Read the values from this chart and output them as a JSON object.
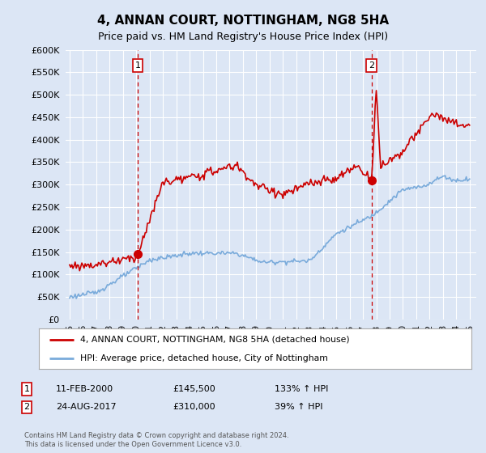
{
  "title": "4, ANNAN COURT, NOTTINGHAM, NG8 5HA",
  "subtitle": "Price paid vs. HM Land Registry's House Price Index (HPI)",
  "title_fontsize": 11,
  "subtitle_fontsize": 9,
  "bg_color": "#dce6f5",
  "plot_bg_color": "#dce6f5",
  "grid_color": "#ffffff",
  "red_line_color": "#cc0000",
  "blue_line_color": "#7aabdb",
  "vline_color": "#cc0000",
  "marker1_date_str": "11-FEB-2000",
  "marker1_price": 145500,
  "marker1_hpi_text": "133% ↑ HPI",
  "marker1_year": 2000.12,
  "marker2_date_str": "24-AUG-2017",
  "marker2_price": 310000,
  "marker2_hpi_text": "39% ↑ HPI",
  "marker2_year": 2017.65,
  "legend_line1": "4, ANNAN COURT, NOTTINGHAM, NG8 5HA (detached house)",
  "legend_line2": "HPI: Average price, detached house, City of Nottingham",
  "footer1": "Contains HM Land Registry data © Crown copyright and database right 2024.",
  "footer2": "This data is licensed under the Open Government Licence v3.0.",
  "ylim_max": 600000,
  "xlim_start": 1994.7,
  "xlim_end": 2025.5
}
